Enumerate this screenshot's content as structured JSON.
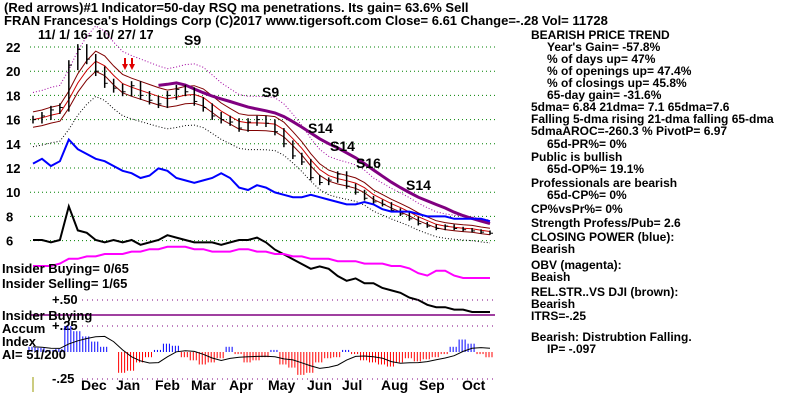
{
  "header": {
    "line1": "(Red arrows)#1 Indicator=50-day RSQ ma penetrations. Its gain= 63.6% Sell",
    "line2": "FRAN  Francesca's Holdings Corp  (C)2017 www.tigersoft.com    Close=  6.61  Change=-.28 Vol= 11728",
    "date_range": "11/ 1/ 16- 10/ 27/ 17"
  },
  "right_panel": [
    "BEARISH PRICE TREND",
    "   Year's Gain= -57.8%",
    "   % of days up= 47%",
    "   % of openings up= 47.4%",
    "   % of closings up= 45.8%",
    "   65-day gain= -31.6%",
    "5dma= 6.84 21dma= 7.1 65dma=7.6",
    "Falling 5-dma  rising 21-dma  falling 65-dma",
    "5dmaAROC=-260.3 %  PivotP= 6.97",
    "   65d-PR%= 0%",
    "Public is bullish",
    "   65d-OP%= 19.1%",
    "Professionals are bearish",
    "   65d-CP%= 0%",
    "CP%vsPr%=  0%",
    "Strength Profess/Pub= 2.6",
    "CLOSING POWER (blue):",
    "Bearish",
    "OBV (magenta):",
    "Beaish",
    "REL.STR..VS DJI (brown):",
    "Bearish",
    "ITRS=-.25",
    "Bearish: Distrubtion Falling.",
    "          IP= -.097"
  ],
  "insider": {
    "buying": "Insider Buying= 0/65",
    "selling": "Insider Selling= 1/65",
    "label1": "Insider Buying",
    "label2": "Accum",
    "label3": "Index",
    "ai": "AI= 51/200"
  },
  "chart_data": {
    "type": "line",
    "title": "FRAN Francesca's Holdings Corp",
    "price_ticks": [
      "22",
      "20",
      "18",
      "16",
      "14",
      "12",
      "10",
      "8",
      "6"
    ],
    "price_ylim": [
      5,
      23
    ],
    "months": [
      "Dec",
      "Jan",
      "Feb",
      "Mar",
      "Apr",
      "May",
      "Jun",
      "Jul",
      "Aug",
      "Sep",
      "Oct"
    ],
    "closes": [
      16,
      16.3,
      16.8,
      17,
      20.5,
      21.8,
      21,
      20,
      19,
      18.6,
      18.3,
      18.8,
      18,
      17.6,
      17.3,
      18,
      18.5,
      18.3,
      17.5,
      17,
      16.3,
      16,
      15.8,
      15.3,
      15.8,
      16,
      15.7,
      15,
      14,
      13,
      12.5,
      11.2,
      10.8,
      11,
      11.5,
      10.5,
      10,
      9.5,
      9.2,
      9,
      8.5,
      8.2,
      7.8,
      7.4,
      7.2,
      7.0,
      7.2,
      7.0,
      6.9,
      6.8,
      6.7,
      6.61
    ],
    "signals": [
      "S9",
      "S9",
      "S14",
      "S14",
      "S16",
      "S14"
    ],
    "closing_power": [
      8.6,
      8.8,
      8.5,
      8.7,
      9.6,
      9.2,
      9,
      8.8,
      8.7,
      8.5,
      8.3,
      8.2,
      8.0,
      8.1,
      8.4,
      8.3,
      8.0,
      7.9,
      7.8,
      7.9,
      8.0,
      8.2,
      8.0,
      7.6,
      7.5,
      7.7,
      7.6,
      7.4,
      7.3,
      7.2,
      7.2,
      7.3,
      7.2,
      7.1,
      7.0,
      6.9,
      6.9,
      7.0,
      6.9,
      6.7,
      6.6,
      6.6,
      6.6,
      6.5,
      6.4,
      6.4,
      6.4,
      6.3,
      6.3,
      6.3,
      6.3,
      6.2
    ],
    "rel_strength": [
      6.0,
      6.0,
      5.9,
      6.0,
      7.4,
      6.4,
      6.3,
      6.0,
      5.9,
      6.0,
      5.9,
      6.0,
      5.8,
      5.9,
      6.0,
      6.2,
      6.1,
      6.0,
      5.9,
      5.9,
      5.9,
      5.8,
      5.9,
      6.0,
      6.0,
      6.1,
      5.9,
      5.6,
      5.4,
      5.2,
      5.0,
      4.8,
      4.9,
      4.8,
      4.5,
      4.3,
      4.4,
      4.2,
      4.2,
      4.0,
      3.9,
      3.8,
      3.6,
      3.5,
      3.3,
      3.2,
      3.2,
      3.1,
      3.1,
      3.0,
      3.0,
      3.0
    ],
    "obv": [
      5.0,
      5.0,
      5.0,
      5.1,
      5.3,
      5.3,
      5.4,
      5.4,
      5.5,
      5.5,
      5.5,
      5.6,
      5.6,
      5.7,
      5.7,
      5.8,
      5.8,
      5.8,
      5.7,
      5.7,
      5.6,
      5.6,
      5.6,
      5.7,
      5.7,
      5.6,
      5.6,
      5.5,
      5.5,
      5.4,
      5.4,
      5.3,
      5.3,
      5.3,
      5.2,
      5.2,
      5.2,
      5.1,
      5.1,
      5.1,
      5.0,
      5.0,
      4.9,
      4.7,
      4.6,
      4.8,
      4.8,
      4.6,
      4.5,
      4.5,
      4.5,
      4.5
    ],
    "ai_ticks": [
      "+.50",
      "+.25",
      "-.25"
    ],
    "accum_index": [
      0.05,
      0.04,
      0.02,
      0.03,
      0.25,
      0.2,
      0.15,
      0.1,
      0.05,
      0,
      -0.2,
      -0.18,
      -0.1,
      -0.05,
      0.02,
      0.08,
      0.06,
      -0.05,
      -0.08,
      -0.12,
      -0.1,
      -0.06,
      0.05,
      -0.02,
      -0.1,
      -0.08,
      -0.05,
      0.02,
      -0.12,
      -0.15,
      -0.22,
      -0.2,
      -0.1,
      -0.06,
      -0.05,
      0.02,
      -0.02,
      -0.08,
      -0.1,
      -0.12,
      -0.14,
      -0.1,
      -0.06,
      -0.09,
      -0.07,
      -0.05,
      -0.02,
      0.05,
      0.12,
      0.08,
      -0.02,
      -0.05
    ],
    "colors": {
      "closing_power": "#0000ff",
      "obv": "#ff00ff",
      "rel_strength": "#000000",
      "ma65": "#800080",
      "bands": "#cc0000",
      "up": "#0000ff",
      "down": "#ff0000",
      "grid": "#008000"
    }
  }
}
